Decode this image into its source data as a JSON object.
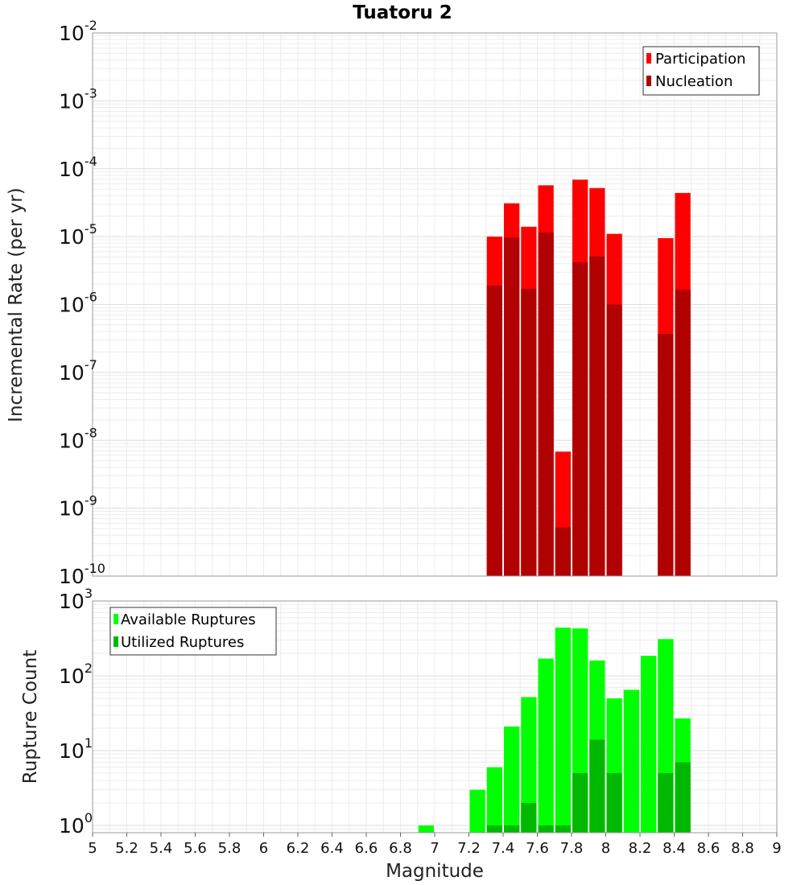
{
  "chart_data": [
    {
      "type": "bar",
      "title": "Tuatoru 2",
      "xlabel": "",
      "ylabel": "Incremental Rate (per yr)",
      "log_y": true,
      "xlim": [
        5,
        9
      ],
      "ylim": [
        1e-10,
        0.01
      ],
      "grid": true,
      "legend_position": "top-right",
      "x": [
        7.35,
        7.45,
        7.55,
        7.65,
        7.75,
        7.85,
        7.95,
        8.05,
        8.35,
        8.45
      ],
      "series": [
        {
          "name": "Participation",
          "color": "#ff0000",
          "values": [
            1e-05,
            3.1e-05,
            1.4e-05,
            5.7e-05,
            6.8e-09,
            6.9e-05,
            5.2e-05,
            1.1e-05,
            9.5e-06,
            4.4e-05
          ]
        },
        {
          "name": "Nucleation",
          "color": "#b00000",
          "values": [
            1.9e-06,
            9.7e-06,
            1.7e-06,
            1.15e-05,
            5.2e-10,
            4.2e-06,
            5.1e-06,
            1e-06,
            3.7e-07,
            1.65e-06
          ]
        }
      ]
    },
    {
      "type": "bar",
      "title": "",
      "xlabel": "Magnitude",
      "ylabel": "Rupture Count",
      "log_y": true,
      "xlim": [
        5,
        9
      ],
      "ylim": [
        0.8,
        1000
      ],
      "grid": true,
      "legend_position": "top-left",
      "x": [
        6.95,
        7.25,
        7.35,
        7.45,
        7.55,
        7.65,
        7.75,
        7.85,
        7.95,
        8.05,
        8.15,
        8.25,
        8.35,
        8.45
      ],
      "series": [
        {
          "name": "Available Ruptures",
          "color": "#00ff00",
          "values": [
            1,
            3,
            6,
            21,
            52,
            170,
            440,
            430,
            160,
            50,
            65,
            185,
            310,
            27
          ]
        },
        {
          "name": "Utilized Ruptures",
          "color": "#00b800",
          "values": [
            null,
            null,
            1,
            1,
            2,
            1,
            1,
            5,
            14,
            5,
            null,
            null,
            5,
            7
          ]
        }
      ]
    }
  ],
  "x_ticks": [
    "5",
    "5.2",
    "5.4",
    "5.6",
    "5.8",
    "6",
    "6.2",
    "6.4",
    "6.6",
    "6.8",
    "7",
    "7.2",
    "7.4",
    "7.6",
    "7.8",
    "8",
    "8.2",
    "8.4",
    "8.6",
    "8.8",
    "9"
  ],
  "top_y_ticks": [
    {
      "base": "10",
      "exp": "-2"
    },
    {
      "base": "10",
      "exp": "-3"
    },
    {
      "base": "10",
      "exp": "-4"
    },
    {
      "base": "10",
      "exp": "-5"
    },
    {
      "base": "10",
      "exp": "-6"
    },
    {
      "base": "10",
      "exp": "-7"
    },
    {
      "base": "10",
      "exp": "-8"
    },
    {
      "base": "10",
      "exp": "-9"
    },
    {
      "base": "10",
      "exp": "-10"
    }
  ],
  "bottom_y_ticks": [
    {
      "base": "10",
      "exp": "3"
    },
    {
      "base": "10",
      "exp": "2"
    },
    {
      "base": "10",
      "exp": "1"
    },
    {
      "base": "10",
      "exp": "0"
    }
  ]
}
